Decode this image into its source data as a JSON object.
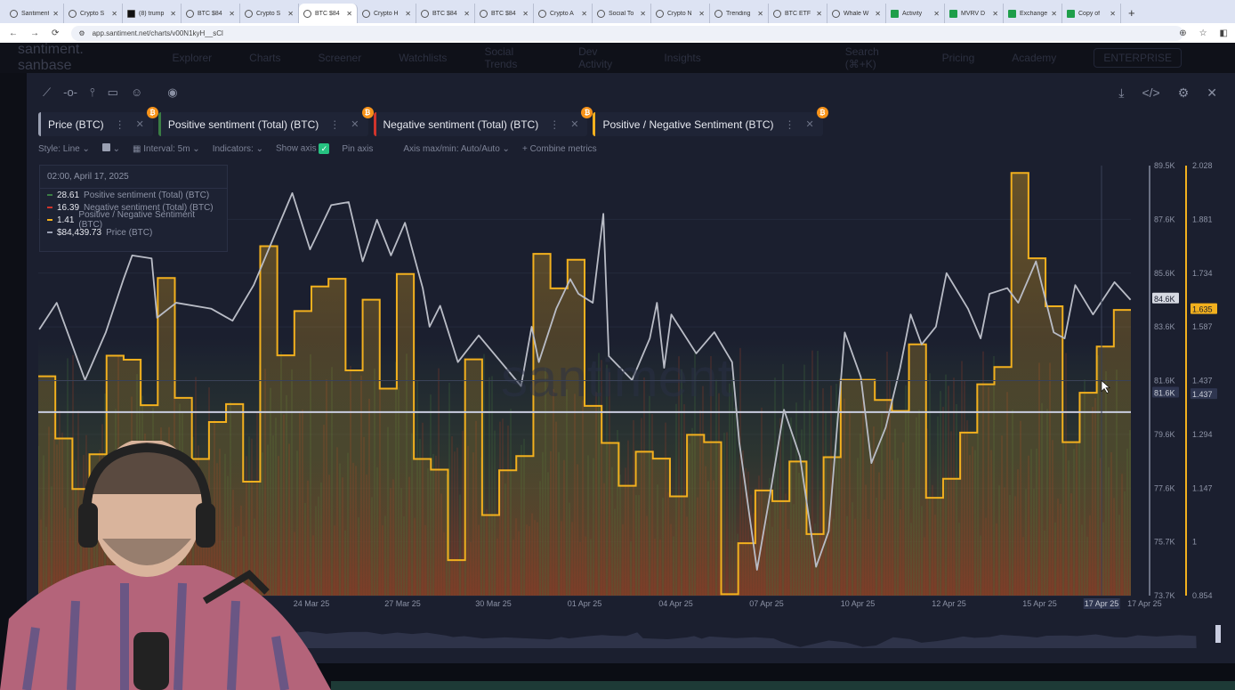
{
  "browser": {
    "tabs": [
      {
        "title": "Santiment",
        "icon": "doc"
      },
      {
        "title": "Crypto S",
        "icon": "santiment"
      },
      {
        "title": "(8) trump",
        "icon": "x"
      },
      {
        "title": "BTC $84",
        "icon": "santiment"
      },
      {
        "title": "Crypto S",
        "icon": "santiment"
      },
      {
        "title": "BTC $84",
        "icon": "santiment",
        "active": true
      },
      {
        "title": "Crypto H",
        "icon": "santiment"
      },
      {
        "title": "BTC $84",
        "icon": "santiment"
      },
      {
        "title": "BTC $84",
        "icon": "santiment"
      },
      {
        "title": "Crypto A",
        "icon": "santiment"
      },
      {
        "title": "Social To",
        "icon": "santiment"
      },
      {
        "title": "Crypto N",
        "icon": "santiment"
      },
      {
        "title": "Trending",
        "icon": "santiment"
      },
      {
        "title": "BTC ETF",
        "icon": "santiment"
      },
      {
        "title": "Whale W",
        "icon": "santiment"
      },
      {
        "title": "Activity",
        "icon": "sheet"
      },
      {
        "title": "MVRV D",
        "icon": "sheet"
      },
      {
        "title": "Exchange",
        "icon": "sheet"
      },
      {
        "title": "Copy of",
        "icon": "sheet"
      }
    ],
    "url": "app.santiment.net/charts/v00N1kyH__sCl"
  },
  "appnav": {
    "logo": "santiment. sanbase",
    "items": [
      "Explorer",
      "Charts",
      "Screener",
      "Watchlists",
      "Social Trends",
      "Dev Activity",
      "Insights"
    ],
    "search": "Search (⌘+K)",
    "pricing": "Pricing",
    "academy": "Academy",
    "enterprise": "ENTERPRISE"
  },
  "metrics": [
    {
      "label": "Price (BTC)",
      "color": "#9aa0b2"
    },
    {
      "label": "Positive sentiment (Total) (BTC)",
      "color": "#3a7d44"
    },
    {
      "label": "Negative sentiment (Total) (BTC)",
      "color": "#d0342c"
    },
    {
      "label": "Positive / Negative Sentiment (BTC)",
      "color": "#f2b01e"
    }
  ],
  "settings": {
    "style": "Style: Line",
    "interval": "Interval: 5m",
    "indicators": "Indicators:",
    "show_axis": "Show axis",
    "pin_axis": "Pin axis",
    "axis_maxmin": "Axis max/min: Auto/Auto",
    "combine": "Combine metrics"
  },
  "legend": {
    "date": "02:00, April 17, 2025",
    "rows": [
      {
        "value": "28.61",
        "label": "Positive sentiment (Total) (BTC)",
        "color": "#3a7d44"
      },
      {
        "value": "16.39",
        "label": "Negative sentiment (Total) (BTC)",
        "color": "#d0342c"
      },
      {
        "value": "1.41",
        "label": "Positive / Negative Sentiment (BTC)",
        "color": "#f2b01e"
      },
      {
        "value": "$84,439.73",
        "label": "Price (BTC)",
        "color": "#9aa0b2"
      }
    ]
  },
  "chart_data": {
    "type": "line",
    "title": "BTC Price vs Positive / Negative Sentiment",
    "xlim": [
      0,
      32
    ],
    "x_unit": "days",
    "x_ticks": [
      {
        "x": 8,
        "label": "24 Mar 25"
      },
      {
        "x": 10.67,
        "label": "27 Mar 25"
      },
      {
        "x": 13.33,
        "label": "30 Mar 25"
      },
      {
        "x": 16,
        "label": "01 Apr 25"
      },
      {
        "x": 18.67,
        "label": "04 Apr 25"
      },
      {
        "x": 21.33,
        "label": "07 Apr 25"
      },
      {
        "x": 24,
        "label": "10 Apr 25"
      },
      {
        "x": 26.67,
        "label": "12 Apr 25"
      },
      {
        "x": 29.33,
        "label": "15 Apr 25"
      },
      {
        "x": 32.4,
        "label": "17 Apr 25"
      }
    ],
    "crosshair": {
      "x": 31.14,
      "x_label": "17 Apr 25",
      "price_label": "81.6K",
      "ratio_label": "1.437",
      "price": 81.6
    },
    "price_axis": {
      "ylim": [
        73.7,
        89.5
      ],
      "ticks": [
        "89.5K",
        "87.6K",
        "85.6K",
        "83.6K",
        "81.6K",
        "79.6K",
        "77.6K",
        "75.7K",
        "73.7K"
      ],
      "current": 84.6,
      "current_label": "84.6K"
    },
    "ratio_axis": {
      "ylim": [
        0.854,
        2.028
      ],
      "ticks": [
        "2.028",
        "1.881",
        "1.734",
        "1.587",
        "1.437",
        "1.294",
        "1.147",
        "1",
        "0.854"
      ],
      "current": 1.635,
      "current_label": "1.635"
    },
    "reference_line": 1.355,
    "series": [
      {
        "name": "Positive / Negative Sentiment (BTC)",
        "style": "step",
        "interval_days": 0.5,
        "color": "#f2b01e",
        "values": [
          1.453,
          1.283,
          1.145,
          1.24,
          1.509,
          1.498,
          1.374,
          1.721,
          1.394,
          1.227,
          1.328,
          1.377,
          1.165,
          1.808,
          1.51,
          1.631,
          1.698,
          1.719,
          1.469,
          1.662,
          1.419,
          1.732,
          1.227,
          1.198,
          0.951,
          1.499,
          1.074,
          1.196,
          1.235,
          1.787,
          1.693,
          1.771,
          1.372,
          1.271,
          1.154,
          1.247,
          1.228,
          1.125,
          1.293,
          1.273,
          0.858,
          0.997,
          1.141,
          1.112,
          1.22,
          1.022,
          1.232,
          1.443,
          1.443,
          1.388,
          1.358,
          1.54,
          1.121,
          1.173,
          1.299,
          1.431,
          1.478,
          2.008,
          1.775,
          1.644,
          1.273,
          1.408,
          1.534,
          1.634
        ]
      },
      {
        "name": "Price (BTC)",
        "unit": "K USD",
        "color": "#b9bcc6",
        "points": [
          [
            0.03,
            83.48
          ],
          [
            0.54,
            84.46
          ],
          [
            1.37,
            81.62
          ],
          [
            1.98,
            83.38
          ],
          [
            2.5,
            85.34
          ],
          [
            2.75,
            86.2
          ],
          [
            3.32,
            86.09
          ],
          [
            3.48,
            83.91
          ],
          [
            4.04,
            84.46
          ],
          [
            5.07,
            84.24
          ],
          [
            5.69,
            83.8
          ],
          [
            6.31,
            85.11
          ],
          [
            6.93,
            86.97
          ],
          [
            7.44,
            88.49
          ],
          [
            7.96,
            86.42
          ],
          [
            8.58,
            88.05
          ],
          [
            9.09,
            88.16
          ],
          [
            9.5,
            85.98
          ],
          [
            9.92,
            87.51
          ],
          [
            10.33,
            86.2
          ],
          [
            10.74,
            87.4
          ],
          [
            11.26,
            85.0
          ],
          [
            11.46,
            83.58
          ],
          [
            11.77,
            84.35
          ],
          [
            12.29,
            82.28
          ],
          [
            12.9,
            83.26
          ],
          [
            14.14,
            81.4
          ],
          [
            14.45,
            83.58
          ],
          [
            14.66,
            82.28
          ],
          [
            15.17,
            84.24
          ],
          [
            15.58,
            85.33
          ],
          [
            15.82,
            84.79
          ],
          [
            16.24,
            84.46
          ],
          [
            16.55,
            87.73
          ],
          [
            16.71,
            82.5
          ],
          [
            17.39,
            81.62
          ],
          [
            17.91,
            83.15
          ],
          [
            18.12,
            84.46
          ],
          [
            18.33,
            82.07
          ],
          [
            18.54,
            84.03
          ],
          [
            19.27,
            82.6
          ],
          [
            19.8,
            83.38
          ],
          [
            20.32,
            82.28
          ],
          [
            20.53,
            79.34
          ],
          [
            21.05,
            74.65
          ],
          [
            21.47,
            77.7
          ],
          [
            21.84,
            80.53
          ],
          [
            22.31,
            78.8
          ],
          [
            22.78,
            74.76
          ],
          [
            23.15,
            76.07
          ],
          [
            23.62,
            83.37
          ],
          [
            24.09,
            81.73
          ],
          [
            24.4,
            78.57
          ],
          [
            24.82,
            79.88
          ],
          [
            25.24,
            82.06
          ],
          [
            25.55,
            84.03
          ],
          [
            25.87,
            82.93
          ],
          [
            26.29,
            83.58
          ],
          [
            26.6,
            85.55
          ],
          [
            27.23,
            84.24
          ],
          [
            27.6,
            83.15
          ],
          [
            27.86,
            84.79
          ],
          [
            28.38,
            85.0
          ],
          [
            28.7,
            84.46
          ],
          [
            29.22,
            85.98
          ],
          [
            29.74,
            83.37
          ],
          [
            30.06,
            83.15
          ],
          [
            30.37,
            85.11
          ],
          [
            30.89,
            84.03
          ],
          [
            31.52,
            85.22
          ],
          [
            31.99,
            84.57
          ]
        ]
      }
    ]
  }
}
